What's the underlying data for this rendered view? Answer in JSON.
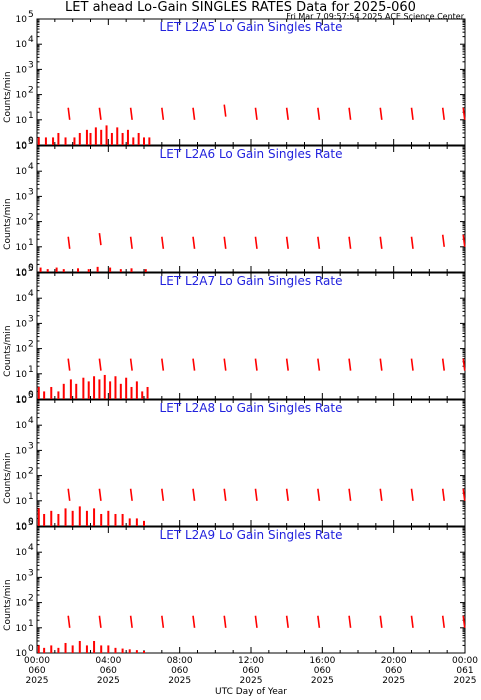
{
  "header": {
    "title": "LET ahead Lo-Gain SINGLES RATES Data for 2025-060",
    "timestamp": "Fri Mar  7 09:57:54 2025 ACE Science Center"
  },
  "colors": {
    "data": "#ff0000",
    "label": "#2222dd",
    "axis": "#000000"
  },
  "chart_data": {
    "type": "line",
    "scale": "log",
    "ylim": [
      1,
      100000
    ],
    "xlim_hours": [
      0,
      24
    ],
    "ylabel": "Counts/min",
    "xlabel": "UTC Day of Year",
    "yticks": [
      {
        "base": "10",
        "exp": "0"
      },
      {
        "base": "10",
        "exp": "1"
      },
      {
        "base": "10",
        "exp": "2"
      },
      {
        "base": "10",
        "exp": "3"
      },
      {
        "base": "10",
        "exp": "4"
      },
      {
        "base": "10",
        "exp": "5"
      }
    ],
    "xticks": [
      {
        "hour": 0,
        "lines": [
          "00:00",
          "060",
          "2025"
        ]
      },
      {
        "hour": 4,
        "lines": [
          "04:00",
          "060",
          "2025"
        ]
      },
      {
        "hour": 8,
        "lines": [
          "08:00",
          "060",
          "2025"
        ]
      },
      {
        "hour": 12,
        "lines": [
          "12:00",
          "060",
          "2025"
        ]
      },
      {
        "hour": 16,
        "lines": [
          "16:00",
          "060",
          "2025"
        ]
      },
      {
        "hour": 20,
        "lines": [
          "20:00",
          "060",
          "2025"
        ]
      },
      {
        "hour": 24,
        "lines": [
          "00:00",
          "061",
          "2025"
        ]
      }
    ],
    "panels": [
      {
        "label": "LET L2A5 Lo Gain Singles Rate",
        "spikes": [
          [
            1.75,
            30
          ],
          [
            3.5,
            30
          ],
          [
            5.25,
            30
          ],
          [
            7.0,
            30
          ],
          [
            8.75,
            30
          ],
          [
            10.5,
            40
          ],
          [
            12.25,
            30
          ],
          [
            14.0,
            30
          ],
          [
            15.75,
            30
          ],
          [
            17.5,
            30
          ],
          [
            19.25,
            30
          ],
          [
            21.0,
            30
          ],
          [
            22.75,
            30
          ],
          [
            23.9,
            30
          ]
        ],
        "noise": [
          [
            0.1,
            2
          ],
          [
            0.5,
            2
          ],
          [
            0.9,
            2
          ],
          [
            1.2,
            3
          ],
          [
            1.6,
            2
          ],
          [
            2.1,
            2
          ],
          [
            2.4,
            3
          ],
          [
            2.8,
            4
          ],
          [
            3.0,
            3
          ],
          [
            3.3,
            5
          ],
          [
            3.6,
            4
          ],
          [
            3.9,
            6
          ],
          [
            4.2,
            3
          ],
          [
            4.5,
            5
          ],
          [
            4.8,
            3
          ],
          [
            5.1,
            4
          ],
          [
            5.4,
            2
          ],
          [
            5.7,
            3
          ],
          [
            6.0,
            2
          ],
          [
            6.3,
            2
          ]
        ]
      },
      {
        "label": "LET L2A6 Lo Gain Singles Rate",
        "spikes": [
          [
            1.75,
            25
          ],
          [
            3.5,
            35
          ],
          [
            5.25,
            25
          ],
          [
            7.0,
            25
          ],
          [
            8.75,
            25
          ],
          [
            10.5,
            25
          ],
          [
            12.25,
            25
          ],
          [
            14.0,
            25
          ],
          [
            15.75,
            25
          ],
          [
            17.5,
            25
          ],
          [
            19.25,
            25
          ],
          [
            21.0,
            25
          ],
          [
            22.75,
            30
          ],
          [
            23.9,
            30
          ]
        ],
        "noise": [
          [
            0.2,
            1.5
          ],
          [
            0.6,
            1.3
          ],
          [
            1.1,
            1.5
          ],
          [
            1.5,
            1.3
          ],
          [
            2.3,
            1.4
          ],
          [
            2.9,
            1.3
          ],
          [
            3.4,
            1.6
          ],
          [
            4.1,
            1.5
          ],
          [
            4.7,
            1.3
          ],
          [
            5.3,
            1.4
          ],
          [
            6.1,
            1.3
          ]
        ]
      },
      {
        "label": "LET L2A7 Lo Gain Singles Rate",
        "spikes": [
          [
            1.75,
            40
          ],
          [
            3.5,
            40
          ],
          [
            5.25,
            40
          ],
          [
            7.0,
            40
          ],
          [
            8.75,
            40
          ],
          [
            10.5,
            40
          ],
          [
            12.25,
            40
          ],
          [
            14.0,
            40
          ],
          [
            15.75,
            40
          ],
          [
            17.5,
            40
          ],
          [
            19.25,
            40
          ],
          [
            21.0,
            40
          ],
          [
            22.75,
            40
          ],
          [
            23.9,
            40
          ]
        ],
        "noise": [
          [
            0.1,
            3
          ],
          [
            0.4,
            2
          ],
          [
            0.8,
            3
          ],
          [
            1.2,
            2
          ],
          [
            1.5,
            4
          ],
          [
            1.9,
            6
          ],
          [
            2.2,
            4
          ],
          [
            2.6,
            7
          ],
          [
            2.9,
            5
          ],
          [
            3.2,
            8
          ],
          [
            3.5,
            6
          ],
          [
            3.8,
            9
          ],
          [
            4.1,
            5
          ],
          [
            4.4,
            8
          ],
          [
            4.7,
            4
          ],
          [
            5.0,
            7
          ],
          [
            5.3,
            3
          ],
          [
            5.6,
            5
          ],
          [
            5.9,
            2
          ],
          [
            6.2,
            3
          ]
        ]
      },
      {
        "label": "LET L2A8 Lo Gain Singles Rate",
        "spikes": [
          [
            1.75,
            30
          ],
          [
            3.5,
            30
          ],
          [
            5.25,
            30
          ],
          [
            7.0,
            30
          ],
          [
            8.75,
            30
          ],
          [
            10.5,
            30
          ],
          [
            12.25,
            30
          ],
          [
            14.0,
            30
          ],
          [
            15.75,
            30
          ],
          [
            17.5,
            30
          ],
          [
            19.25,
            30
          ],
          [
            21.0,
            30
          ],
          [
            22.75,
            30
          ],
          [
            23.9,
            30
          ]
        ],
        "noise": [
          [
            0.1,
            5
          ],
          [
            0.4,
            3
          ],
          [
            0.8,
            4
          ],
          [
            1.2,
            3
          ],
          [
            1.6,
            5
          ],
          [
            2.0,
            4
          ],
          [
            2.4,
            6
          ],
          [
            2.8,
            4
          ],
          [
            3.2,
            5
          ],
          [
            3.6,
            3
          ],
          [
            4.0,
            4
          ],
          [
            4.4,
            3
          ],
          [
            4.8,
            3
          ],
          [
            5.2,
            2
          ],
          [
            5.6,
            2
          ],
          [
            6.0,
            1.6
          ]
        ]
      },
      {
        "label": "LET L2A9 Lo Gain Singles Rate",
        "spikes": [
          [
            1.75,
            30
          ],
          [
            3.5,
            30
          ],
          [
            5.25,
            30
          ],
          [
            7.0,
            30
          ],
          [
            8.75,
            30
          ],
          [
            10.5,
            30
          ],
          [
            12.25,
            30
          ],
          [
            14.0,
            30
          ],
          [
            15.75,
            30
          ],
          [
            17.5,
            30
          ],
          [
            19.25,
            30
          ],
          [
            21.0,
            30
          ],
          [
            22.75,
            30
          ],
          [
            23.9,
            30
          ]
        ],
        "noise": [
          [
            0.1,
            2
          ],
          [
            0.4,
            1.6
          ],
          [
            0.8,
            2
          ],
          [
            1.2,
            1.6
          ],
          [
            1.6,
            2.5
          ],
          [
            2.0,
            2
          ],
          [
            2.4,
            3
          ],
          [
            2.8,
            2
          ],
          [
            3.2,
            3
          ],
          [
            3.6,
            2
          ],
          [
            4.0,
            2
          ],
          [
            4.4,
            1.6
          ],
          [
            4.8,
            1.5
          ],
          [
            5.2,
            1.4
          ],
          [
            5.6,
            1.3
          ],
          [
            6.0,
            1.2
          ]
        ]
      }
    ]
  }
}
